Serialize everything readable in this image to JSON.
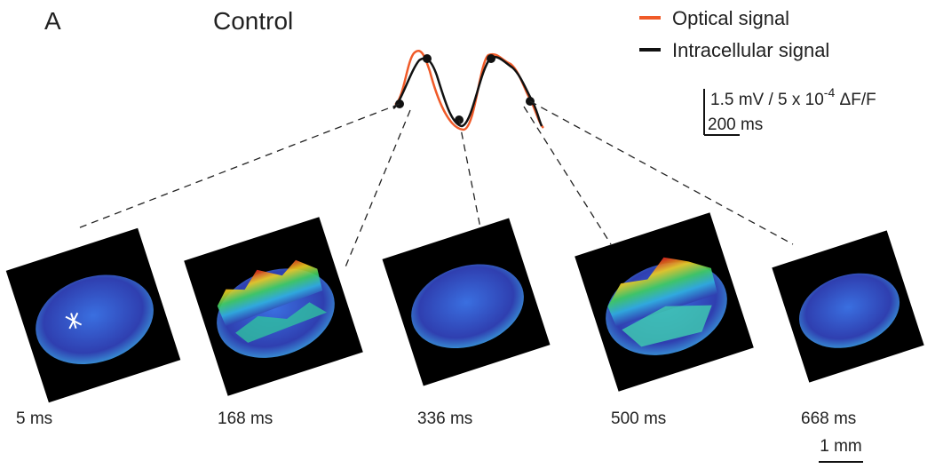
{
  "panel": {
    "label": "A",
    "title": "Control"
  },
  "legend": {
    "items": [
      "Optical signal",
      "Intracellular signal"
    ]
  },
  "scale_bar": {
    "vertical_label": [
      "1.5 mV / 5 x 10",
      "-4",
      " ΔF/F"
    ],
    "horizontal_label": "200 ms",
    "spatial_label": "1 mm"
  },
  "frames": [
    {
      "time": "5 ms"
    },
    {
      "time": "168 ms"
    },
    {
      "time": "336 ms"
    },
    {
      "time": "500 ms"
    },
    {
      "time": "668 ms"
    }
  ]
}
